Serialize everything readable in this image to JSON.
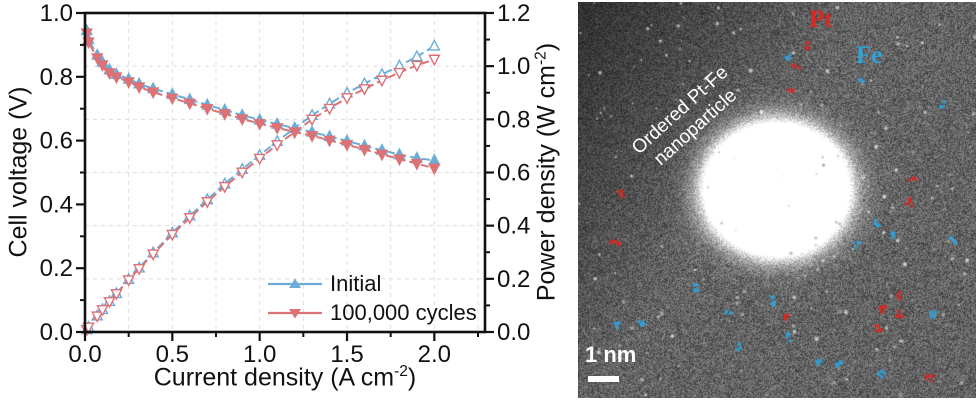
{
  "chart": {
    "xlabel_pre": "Current density (A cm",
    "xlabel_sup": "-2",
    "xlabel_post": ")",
    "ylabel_left": "Cell voltage (V)",
    "ylabel_right_pre": "Power density (W cm",
    "ylabel_right_sup": "-2",
    "ylabel_right_post": ")"
  },
  "chart_data": {
    "type": "line",
    "title": "",
    "xlabel": "Current density (A cm-2)",
    "ylabel_left": "Cell voltage (V)",
    "ylabel_right": "Power density (W cm-2)",
    "xlim": [
      0,
      2.29
    ],
    "ylim_left": [
      0,
      1.0
    ],
    "ylim_right": [
      0,
      1.2
    ],
    "x_ticks": {
      "values": [
        0,
        0.5,
        1.0,
        1.5,
        2.0
      ],
      "labels": [
        "0.0",
        "0.5",
        "1.0",
        "1.5",
        "2.0"
      ],
      "minor_step": 0.25
    },
    "y_ticks_left": {
      "values": [
        0,
        0.2,
        0.4,
        0.6,
        0.8,
        1.0
      ],
      "labels": [
        "0.0",
        "0.2",
        "0.4",
        "0.6",
        "0.8",
        "1.0"
      ],
      "minor_step": 0.1
    },
    "y_ticks_right": {
      "values": [
        0,
        0.2,
        0.4,
        0.6,
        0.8,
        1.0,
        1.2
      ],
      "labels": [
        "0.0",
        "0.2",
        "0.4",
        "0.6",
        "0.8",
        "1.0",
        "1.2"
      ],
      "minor_step": 0.1
    },
    "grid": {
      "x_step": 0.25,
      "y_right_step": 0.2,
      "style": "dashed",
      "color": "#e2dcdc"
    },
    "legend_position": "lower right",
    "axis_color": "#111111",
    "series": [
      {
        "label": "Initial",
        "quantity": "cell_voltage",
        "axis": "left",
        "marker": "triangle-up",
        "fill": "filled",
        "color": "#6badd8",
        "x": [
          0.01,
          0.02,
          0.07,
          0.1,
          0.14,
          0.18,
          0.25,
          0.31,
          0.39,
          0.5,
          0.6,
          0.7,
          0.8,
          0.9,
          1.0,
          1.1,
          1.2,
          1.3,
          1.4,
          1.5,
          1.6,
          1.7,
          1.8,
          1.9,
          2.0
        ],
        "y": [
          0.945,
          0.917,
          0.868,
          0.846,
          0.822,
          0.808,
          0.793,
          0.778,
          0.763,
          0.745,
          0.729,
          0.712,
          0.696,
          0.68,
          0.665,
          0.652,
          0.639,
          0.627,
          0.613,
          0.599,
          0.584,
          0.57,
          0.556,
          0.545,
          0.538
        ]
      },
      {
        "label": "100,000 cycles",
        "quantity": "cell_voltage",
        "axis": "left",
        "marker": "triangle-down",
        "fill": "filled",
        "color": "#dc7176",
        "x": [
          0.01,
          0.02,
          0.07,
          0.1,
          0.14,
          0.18,
          0.25,
          0.31,
          0.39,
          0.5,
          0.6,
          0.7,
          0.8,
          0.9,
          1.0,
          1.1,
          1.2,
          1.3,
          1.4,
          1.5,
          1.6,
          1.7,
          1.8,
          1.9,
          2.0
        ],
        "y": [
          0.937,
          0.909,
          0.859,
          0.837,
          0.812,
          0.799,
          0.784,
          0.768,
          0.752,
          0.733,
          0.717,
          0.7,
          0.684,
          0.668,
          0.653,
          0.64,
          0.627,
          0.615,
          0.601,
          0.587,
          0.572,
          0.557,
          0.542,
          0.528,
          0.513
        ]
      },
      {
        "label": "Initial",
        "quantity": "power_density",
        "axis": "right",
        "marker": "triangle-up",
        "fill": "open",
        "color": "#6badd8",
        "x": [
          0.01,
          0.02,
          0.07,
          0.1,
          0.14,
          0.18,
          0.25,
          0.31,
          0.39,
          0.5,
          0.6,
          0.7,
          0.8,
          0.9,
          1.0,
          1.1,
          1.2,
          1.3,
          1.4,
          1.5,
          1.6,
          1.7,
          1.8,
          1.9,
          2.0
        ],
        "y": [
          0.009,
          0.018,
          0.061,
          0.085,
          0.115,
          0.145,
          0.198,
          0.241,
          0.298,
          0.373,
          0.437,
          0.498,
          0.557,
          0.612,
          0.665,
          0.717,
          0.767,
          0.815,
          0.858,
          0.899,
          0.934,
          0.969,
          1.001,
          1.036,
          1.076
        ]
      },
      {
        "label": "100,000 cycles",
        "quantity": "power_density",
        "axis": "right",
        "marker": "triangle-down",
        "fill": "open",
        "color": "#dc7176",
        "x": [
          0.01,
          0.02,
          0.07,
          0.1,
          0.14,
          0.18,
          0.25,
          0.31,
          0.39,
          0.5,
          0.6,
          0.7,
          0.8,
          0.9,
          1.0,
          1.1,
          1.2,
          1.3,
          1.4,
          1.5,
          1.6,
          1.7,
          1.8,
          1.9,
          2.0
        ],
        "y": [
          0.009,
          0.018,
          0.06,
          0.084,
          0.114,
          0.144,
          0.196,
          0.238,
          0.293,
          0.367,
          0.43,
          0.49,
          0.547,
          0.601,
          0.653,
          0.704,
          0.752,
          0.8,
          0.841,
          0.881,
          0.915,
          0.947,
          0.976,
          1.003,
          1.026
        ]
      }
    ]
  },
  "micrograph": {
    "caption_line1": "Ordered Pt-Fe",
    "caption_line2": "nanoparticle",
    "pt_label": "Pt",
    "pt_color": "#d42a24",
    "fe_label": "Fe",
    "fe_color": "#2fa3dc",
    "scale_text": "1 nm",
    "pt_markers": [
      [
        57.8,
        11.4
      ],
      [
        54.5,
        16.4
      ],
      [
        53.8,
        22.0
      ],
      [
        10.6,
        48.2
      ],
      [
        84.2,
        44.9
      ],
      [
        82.9,
        50.8
      ],
      [
        9.3,
        60.9
      ],
      [
        52.5,
        79.5
      ],
      [
        80.9,
        74.5
      ],
      [
        76.4,
        77.3
      ],
      [
        80.9,
        79.0
      ],
      [
        75.4,
        82.3
      ],
      [
        88.4,
        94.7
      ]
    ],
    "fe_markers": [
      [
        52.5,
        13.9
      ],
      [
        71.4,
        19.7
      ],
      [
        91.7,
        26.0
      ],
      [
        75.1,
        55.8
      ],
      [
        78.9,
        58.8
      ],
      [
        70.1,
        60.9
      ],
      [
        94.0,
        60.1
      ],
      [
        29.4,
        72.2
      ],
      [
        49.0,
        75.3
      ],
      [
        37.4,
        79.0
      ],
      [
        16.1,
        80.8
      ],
      [
        89.2,
        79.0
      ],
      [
        53.3,
        84.8
      ],
      [
        40.2,
        87.1
      ],
      [
        60.1,
        91.2
      ],
      [
        65.1,
        91.2
      ],
      [
        76.4,
        93.7
      ],
      [
        10.1,
        81.6
      ]
    ]
  }
}
